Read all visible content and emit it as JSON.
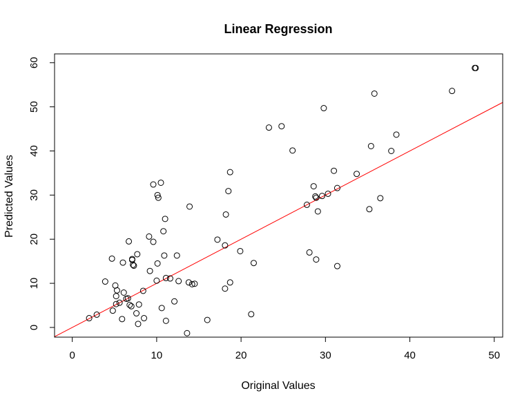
{
  "chart_data": {
    "type": "scatter",
    "title": "Linear Regression",
    "xlabel": "Original Values",
    "ylabel": "Predicted Values",
    "xlim": [
      -2.1,
      51.0
    ],
    "ylim": [
      -2.2,
      62.0
    ],
    "x_ticks": [
      0,
      10,
      20,
      30,
      40,
      50
    ],
    "y_ticks": [
      0,
      10,
      20,
      30,
      40,
      50,
      60
    ],
    "grid": false,
    "point_color": "#000000",
    "line_color": "#ff0000",
    "regression_line": {
      "intercept": 0.0,
      "slope": 1.0
    },
    "points": [
      [
        2.0,
        2.1
      ],
      [
        2.9,
        2.9
      ],
      [
        3.9,
        10.4
      ],
      [
        4.7,
        15.6
      ],
      [
        4.8,
        3.8
      ],
      [
        5.1,
        9.5
      ],
      [
        5.2,
        7.1
      ],
      [
        5.3,
        8.4
      ],
      [
        5.2,
        5.3
      ],
      [
        5.6,
        5.6
      ],
      [
        5.9,
        1.9
      ],
      [
        6.0,
        14.7
      ],
      [
        6.1,
        7.9
      ],
      [
        6.4,
        6.5
      ],
      [
        6.6,
        6.6
      ],
      [
        6.7,
        19.5
      ],
      [
        6.8,
        5.1
      ],
      [
        7.0,
        4.8
      ],
      [
        7.1,
        15.5
      ],
      [
        7.1,
        15.3
      ],
      [
        7.2,
        14.2
      ],
      [
        7.3,
        14.0
      ],
      [
        7.6,
        3.2
      ],
      [
        7.7,
        16.6
      ],
      [
        7.8,
        0.8
      ],
      [
        7.9,
        5.2
      ],
      [
        8.4,
        8.3
      ],
      [
        8.5,
        2.1
      ],
      [
        9.1,
        20.6
      ],
      [
        9.2,
        12.8
      ],
      [
        9.6,
        19.4
      ],
      [
        9.6,
        32.4
      ],
      [
        10.0,
        10.6
      ],
      [
        10.1,
        14.5
      ],
      [
        10.1,
        30.0
      ],
      [
        10.2,
        29.4
      ],
      [
        10.5,
        32.8
      ],
      [
        10.6,
        4.4
      ],
      [
        10.8,
        21.8
      ],
      [
        10.9,
        16.3
      ],
      [
        11.0,
        24.6
      ],
      [
        11.1,
        1.5
      ],
      [
        11.1,
        11.2
      ],
      [
        11.6,
        11.1
      ],
      [
        12.1,
        5.9
      ],
      [
        12.4,
        16.3
      ],
      [
        12.6,
        10.5
      ],
      [
        13.6,
        -1.3
      ],
      [
        13.8,
        10.2
      ],
      [
        13.9,
        27.4
      ],
      [
        14.2,
        9.8
      ],
      [
        14.5,
        9.9
      ],
      [
        16.0,
        1.7
      ],
      [
        17.2,
        19.9
      ],
      [
        18.1,
        18.6
      ],
      [
        18.1,
        8.8
      ],
      [
        18.2,
        25.6
      ],
      [
        18.5,
        30.9
      ],
      [
        18.7,
        35.2
      ],
      [
        18.7,
        10.2
      ],
      [
        19.9,
        17.3
      ],
      [
        21.2,
        3.0
      ],
      [
        21.5,
        14.6
      ],
      [
        23.3,
        45.3
      ],
      [
        24.8,
        45.6
      ],
      [
        26.1,
        40.1
      ],
      [
        27.8,
        27.8
      ],
      [
        28.1,
        17.0
      ],
      [
        28.6,
        32.0
      ],
      [
        28.8,
        29.7
      ],
      [
        28.9,
        15.4
      ],
      [
        28.9,
        29.4
      ],
      [
        29.1,
        26.3
      ],
      [
        29.6,
        29.8
      ],
      [
        29.8,
        49.7
      ],
      [
        30.3,
        30.3
      ],
      [
        31.0,
        35.5
      ],
      [
        31.4,
        31.6
      ],
      [
        31.4,
        13.9
      ],
      [
        33.7,
        34.8
      ],
      [
        35.2,
        26.8
      ],
      [
        35.4,
        41.1
      ],
      [
        35.8,
        53.0
      ],
      [
        36.5,
        29.3
      ],
      [
        37.8,
        40.0
      ],
      [
        38.4,
        43.7
      ],
      [
        45.0,
        53.6
      ],
      [
        47.7,
        58.8
      ],
      [
        47.8,
        58.8
      ]
    ]
  }
}
